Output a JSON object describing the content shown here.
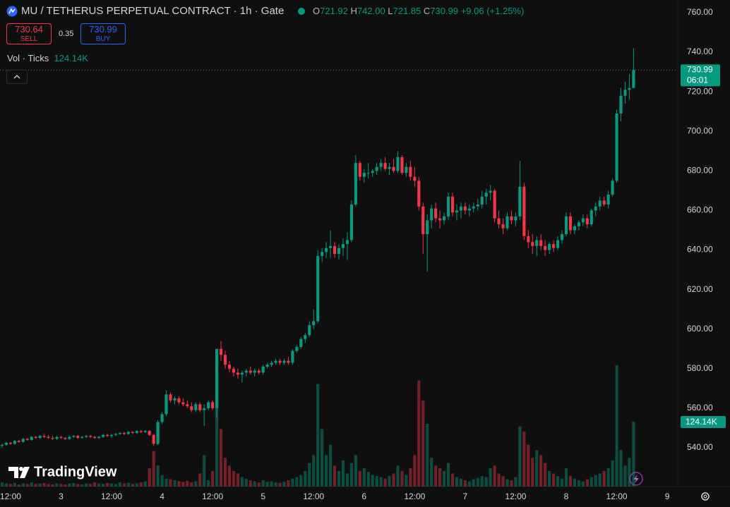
{
  "header": {
    "title": "MU / TETHERUS PERPETUAL CONTRACT · 1h · Gate",
    "ohlc": [
      {
        "key": "O",
        "value": "721.92"
      },
      {
        "key": "H",
        "value": "742.00"
      },
      {
        "key": "L",
        "value": "721.85"
      },
      {
        "key": "C",
        "value": "730.99"
      }
    ],
    "change": "+9.06 (+1.25%)",
    "sell_price": "730.64",
    "sell_label": "SELL",
    "spread": "0.35",
    "buy_price": "730.99",
    "buy_label": "BUY",
    "volume_legend": "Vol · Ticks",
    "volume_value": "124.14K",
    "logo": "TradingView"
  },
  "chart_data": {
    "type": "candlestick",
    "up_color": "#089981",
    "down_color": "#f23645",
    "xlim": [
      -0.5,
      160.5
    ],
    "ylim": [
      520.4,
      766.4
    ],
    "xticks": [
      {
        "value": 2,
        "label": "12:00"
      },
      {
        "value": 14,
        "label": "3"
      },
      {
        "value": 26,
        "label": "12:00"
      },
      {
        "value": 38,
        "label": "4"
      },
      {
        "value": 50,
        "label": "12:00"
      },
      {
        "value": 62,
        "label": "5"
      },
      {
        "value": 74,
        "label": "12:00"
      },
      {
        "value": 86,
        "label": "6"
      },
      {
        "value": 98,
        "label": "12:00"
      },
      {
        "value": 110,
        "label": "7"
      },
      {
        "value": 122,
        "label": "12:00"
      },
      {
        "value": 134,
        "label": "8"
      },
      {
        "value": 146,
        "label": "12:00"
      },
      {
        "value": 158,
        "label": "9"
      }
    ],
    "yticks": [
      {
        "value": 540,
        "label": "540.00"
      },
      {
        "value": 560,
        "label": "560.00"
      },
      {
        "value": 580,
        "label": "580.00"
      },
      {
        "value": 600,
        "label": "600.00"
      },
      {
        "value": 620,
        "label": "620.00"
      },
      {
        "value": 640,
        "label": "640.00"
      },
      {
        "value": 660,
        "label": "660.00"
      },
      {
        "value": 680,
        "label": "680.00"
      },
      {
        "value": 700,
        "label": "700.00"
      },
      {
        "value": 720,
        "label": "720.00"
      },
      {
        "value": 740,
        "label": "740.00"
      },
      {
        "value": 760,
        "label": "760.00"
      }
    ],
    "price_tag": "730.99",
    "countdown": "06:01",
    "volume_tag": "124.14K",
    "candles": [
      [
        541,
        542,
        540,
        541.5
      ],
      [
        541.5,
        543,
        541,
        542.5
      ],
      [
        542.5,
        543,
        541.5,
        542
      ],
      [
        542,
        544,
        541.5,
        543.5
      ],
      [
        543.5,
        544,
        542.5,
        543
      ],
      [
        543,
        545,
        542.5,
        544.5
      ],
      [
        544.5,
        545,
        543.5,
        544
      ],
      [
        544,
        546,
        543.5,
        545.5
      ],
      [
        545.5,
        546,
        544.5,
        545
      ],
      [
        545,
        546.5,
        544.5,
        546
      ],
      [
        546,
        547,
        545,
        545.5
      ],
      [
        545.5,
        546.5,
        544.5,
        545
      ],
      [
        545,
        546,
        544,
        544.5
      ],
      [
        544.5,
        546,
        544,
        545.5
      ],
      [
        545.5,
        546,
        544.5,
        545
      ],
      [
        545,
        545.5,
        544,
        544.5
      ],
      [
        544.5,
        546,
        544,
        545.5
      ],
      [
        545.5,
        546.5,
        545,
        546
      ],
      [
        546,
        546.5,
        544.5,
        545
      ],
      [
        545,
        546,
        544.5,
        545.5
      ],
      [
        545.5,
        546.5,
        545,
        546
      ],
      [
        546,
        546.5,
        545,
        545.5
      ],
      [
        545.5,
        546,
        544.5,
        545
      ],
      [
        545,
        546,
        544.5,
        545.5
      ],
      [
        545.5,
        547,
        545,
        546.5
      ],
      [
        546.5,
        547,
        545.5,
        546
      ],
      [
        546,
        547,
        545,
        546.5
      ],
      [
        546.5,
        547.5,
        546,
        547
      ],
      [
        547,
        548,
        546.5,
        547.5
      ],
      [
        547.5,
        548,
        546.5,
        547
      ],
      [
        547,
        548.5,
        546.5,
        548
      ],
      [
        548,
        548.5,
        547,
        547.5
      ],
      [
        547.5,
        549,
        547,
        548.5
      ],
      [
        548.5,
        549,
        547.5,
        548
      ],
      [
        548,
        549,
        547.5,
        548.5
      ],
      [
        548.5,
        549,
        546,
        546.5
      ],
      [
        546.5,
        547,
        541,
        542
      ],
      [
        542,
        554,
        541.5,
        553
      ],
      [
        553,
        558,
        552,
        557
      ],
      [
        557,
        569,
        556,
        567
      ],
      [
        567,
        568,
        563,
        564
      ],
      [
        564,
        566,
        562,
        565
      ],
      [
        565,
        566,
        562,
        563
      ],
      [
        563,
        565,
        561,
        562
      ],
      [
        562,
        564,
        560,
        561
      ],
      [
        561,
        563,
        558,
        559
      ],
      [
        559,
        563,
        558,
        562
      ],
      [
        562,
        563,
        558,
        559
      ],
      [
        559,
        562,
        551,
        560
      ],
      [
        560,
        564,
        559,
        563
      ],
      [
        563,
        564,
        559,
        560
      ],
      [
        560,
        590,
        555,
        590
      ],
      [
        590,
        594,
        584,
        587
      ],
      [
        587,
        589,
        580,
        582
      ],
      [
        582,
        584,
        578,
        580
      ],
      [
        580,
        581,
        576,
        578
      ],
      [
        578,
        580,
        575,
        577
      ],
      [
        577,
        579,
        573,
        578
      ],
      [
        578,
        580,
        576,
        579
      ],
      [
        579,
        581,
        577,
        578
      ],
      [
        578,
        580,
        576,
        579
      ],
      [
        579,
        580,
        577,
        578
      ],
      [
        578,
        582,
        577,
        581
      ],
      [
        581,
        583,
        580,
        582
      ],
      [
        582,
        584,
        581,
        583
      ],
      [
        583,
        585,
        582,
        584
      ],
      [
        584,
        585,
        582,
        583
      ],
      [
        583,
        585,
        582,
        584
      ],
      [
        584,
        586,
        582,
        583
      ],
      [
        583,
        590,
        582,
        589
      ],
      [
        589,
        592,
        588,
        591
      ],
      [
        591,
        596,
        590,
        595
      ],
      [
        595,
        598,
        593,
        597
      ],
      [
        597,
        604,
        596,
        602
      ],
      [
        602,
        610,
        600,
        604
      ],
      [
        604,
        640,
        603,
        637
      ],
      [
        637,
        641,
        634,
        639
      ],
      [
        639,
        644,
        636,
        641
      ],
      [
        641,
        650,
        636,
        642
      ],
      [
        642,
        644,
        636,
        638
      ],
      [
        638,
        643,
        635,
        641
      ],
      [
        641,
        646,
        637,
        643
      ],
      [
        643,
        649,
        635,
        645
      ],
      [
        645,
        665,
        644,
        663
      ],
      [
        663,
        688,
        662,
        684
      ],
      [
        684,
        685,
        675,
        677
      ],
      [
        677,
        681,
        674,
        679
      ],
      [
        679,
        684,
        676,
        679
      ],
      [
        679,
        681,
        677,
        680
      ],
      [
        680,
        684,
        678,
        682
      ],
      [
        682,
        686,
        680,
        684
      ],
      [
        684,
        687,
        680,
        681
      ],
      [
        681,
        684,
        678,
        682
      ],
      [
        682,
        686,
        679,
        680
      ],
      [
        680,
        690,
        679,
        687
      ],
      [
        687,
        688,
        678,
        679
      ],
      [
        679,
        684,
        677,
        682
      ],
      [
        682,
        685,
        675,
        677
      ],
      [
        677,
        682,
        672,
        675
      ],
      [
        675,
        677,
        660,
        662
      ],
      [
        662,
        664,
        638,
        648
      ],
      [
        648,
        658,
        629,
        655
      ],
      [
        655,
        663,
        651,
        661
      ],
      [
        661,
        664,
        654,
        656
      ],
      [
        656,
        660,
        651,
        655
      ],
      [
        655,
        659,
        653,
        657
      ],
      [
        657,
        669,
        655,
        667
      ],
      [
        667,
        669,
        657,
        659
      ],
      [
        659,
        663,
        655,
        660
      ],
      [
        660,
        664,
        656,
        662
      ],
      [
        662,
        664,
        658,
        660
      ],
      [
        660,
        663,
        657,
        661
      ],
      [
        661,
        664,
        659,
        662
      ],
      [
        662,
        666,
        660,
        663
      ],
      [
        663,
        670,
        661,
        667
      ],
      [
        667,
        671,
        663,
        669
      ],
      [
        669,
        673,
        665,
        670
      ],
      [
        670,
        671,
        654,
        656
      ],
      [
        656,
        660,
        651,
        653
      ],
      [
        653,
        656,
        648,
        651
      ],
      [
        651,
        659,
        650,
        657
      ],
      [
        657,
        660,
        653,
        655
      ],
      [
        655,
        659,
        652,
        657
      ],
      [
        657,
        685,
        655,
        672
      ],
      [
        672,
        674,
        645,
        647
      ],
      [
        647,
        650,
        641,
        644
      ],
      [
        644,
        648,
        638,
        642
      ],
      [
        642,
        647,
        637,
        645
      ],
      [
        645,
        648,
        640,
        642
      ],
      [
        642,
        645,
        637,
        640
      ],
      [
        640,
        644,
        638,
        643
      ],
      [
        643,
        645,
        639,
        641
      ],
      [
        641,
        647,
        640,
        645
      ],
      [
        645,
        650,
        643,
        648
      ],
      [
        648,
        659,
        647,
        657
      ],
      [
        657,
        659,
        648,
        650
      ],
      [
        650,
        653,
        648,
        652
      ],
      [
        652,
        655,
        650,
        654
      ],
      [
        654,
        658,
        652,
        656
      ],
      [
        656,
        658,
        651,
        653
      ],
      [
        653,
        661,
        652,
        660
      ],
      [
        660,
        664,
        657,
        662
      ],
      [
        662,
        667,
        660,
        665
      ],
      [
        665,
        667,
        662,
        663
      ],
      [
        663,
        670,
        661,
        668
      ],
      [
        668,
        676,
        667,
        675
      ],
      [
        675,
        711,
        674,
        709
      ],
      [
        709,
        722,
        705,
        718
      ],
      [
        718,
        725,
        714,
        721
      ],
      [
        721,
        729,
        716,
        721.92
      ],
      [
        721.92,
        742,
        721.85,
        730.99
      ]
    ],
    "volumes": [
      8,
      6,
      5,
      7,
      4,
      6,
      5,
      8,
      5,
      6,
      7,
      5,
      4,
      6,
      5,
      4,
      6,
      7,
      5,
      4,
      6,
      5,
      8,
      6,
      5,
      7,
      6,
      5,
      8,
      6,
      7,
      5,
      6,
      8,
      10,
      35,
      68,
      40,
      22,
      15,
      14,
      12,
      10,
      9,
      11,
      8,
      10,
      25,
      60,
      12,
      30,
      150,
      110,
      55,
      40,
      30,
      25,
      18,
      15,
      12,
      10,
      8,
      12,
      9,
      10,
      8,
      7,
      9,
      12,
      15,
      18,
      22,
      30,
      45,
      60,
      196,
      110,
      60,
      80,
      40,
      30,
      50,
      25,
      45,
      60,
      30,
      35,
      28,
      22,
      20,
      18,
      15,
      20,
      25,
      40,
      30,
      22,
      35,
      60,
      203,
      165,
      120,
      55,
      40,
      35,
      30,
      45,
      25,
      18,
      15,
      12,
      10,
      14,
      16,
      20,
      18,
      35,
      40,
      25,
      20,
      14,
      12,
      18,
      115,
      105,
      80,
      55,
      70,
      60,
      45,
      30,
      25,
      20,
      15,
      35,
      20,
      15,
      12,
      10,
      14,
      18,
      22,
      25,
      30,
      35,
      50,
      232,
      70,
      40,
      55,
      124.14
    ]
  }
}
